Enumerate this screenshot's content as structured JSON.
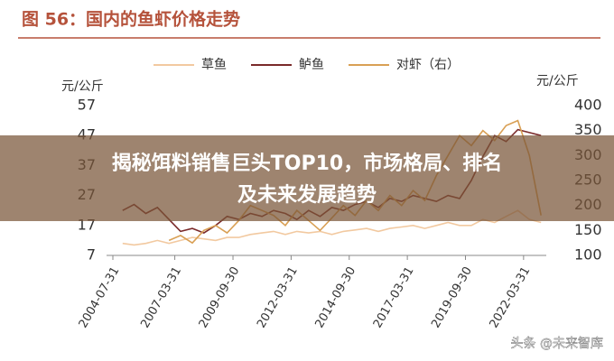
{
  "chart_data": {
    "type": "line",
    "title": "图 56：国内的鱼虾价格走势",
    "y_label": "元/公斤",
    "y2_label": "元/公斤",
    "x": [
      "2004-12-31",
      "2005-06-30",
      "2005-12-31",
      "2006-06-30",
      "2006-12-31",
      "2007-06-30",
      "2007-12-31",
      "2008-06-30",
      "2008-12-31",
      "2009-06-30",
      "2009-12-31",
      "2010-06-30",
      "2010-12-31",
      "2011-06-30",
      "2011-12-31",
      "2012-06-30",
      "2012-12-31",
      "2013-06-30",
      "2013-12-31",
      "2014-06-30",
      "2014-12-31",
      "2015-06-30",
      "2015-12-31",
      "2016-06-30",
      "2016-12-31",
      "2017-06-30",
      "2017-12-31",
      "2018-06-30",
      "2018-12-31",
      "2019-06-30",
      "2019-12-31",
      "2020-06-30",
      "2020-12-31",
      "2021-06-30",
      "2021-12-31",
      "2022-06-30",
      "2022-12-31"
    ],
    "series": [
      {
        "name": "草鱼",
        "color": "#f2c9a0",
        "values": [
          11,
          10.5,
          11,
          12,
          11,
          12,
          13,
          12.5,
          12,
          13,
          13,
          14,
          14.5,
          15,
          14,
          15,
          14.5,
          15,
          14,
          15,
          15.5,
          16,
          15,
          16,
          16.5,
          17,
          16,
          17,
          18,
          17,
          17,
          19,
          18,
          20,
          22,
          19,
          18
        ]
      },
      {
        "name": "鲈鱼",
        "color": "#7a2a2a",
        "values": [
          22,
          24,
          21,
          23,
          19,
          15,
          16,
          14.5,
          17,
          20,
          19,
          21,
          20,
          22,
          21,
          19,
          22,
          20,
          23,
          22,
          24,
          25,
          23,
          26,
          25,
          27,
          26,
          25,
          27,
          26,
          32,
          40,
          47,
          45,
          49,
          48,
          47
        ]
      },
      {
        "name": "对虾（右）",
        "color": "#d9a055",
        "axis": "y2",
        "values": [
          null,
          null,
          null,
          null,
          130,
          140,
          125,
          150,
          160,
          145,
          170,
          200,
          190,
          180,
          160,
          190,
          170,
          150,
          175,
          200,
          180,
          210,
          190,
          220,
          200,
          230,
          210,
          260,
          300,
          340,
          320,
          350,
          330,
          360,
          370,
          300,
          180
        ]
      }
    ],
    "xlim": [
      "2004-07-31",
      "2023-06-30"
    ],
    "xticks": [
      "2004-07-31",
      "2007-03-31",
      "2009-09-30",
      "2012-03-31",
      "2014-09-30",
      "2017-03-31",
      "2019-09-30",
      "2022-03-31"
    ],
    "ylim": [
      7,
      57
    ],
    "yticks": [
      7,
      17,
      27,
      37,
      47,
      57
    ],
    "y2lim": [
      100,
      400
    ],
    "y2ticks": [
      100,
      150,
      200,
      250,
      300,
      350,
      400
    ],
    "legend": "top"
  },
  "banner": {
    "lines": [
      "揭秘饵料销售巨头TOP10，市场格局、排名",
      "及未来发展趋势"
    ]
  },
  "watermark": "头条 @未来智库"
}
